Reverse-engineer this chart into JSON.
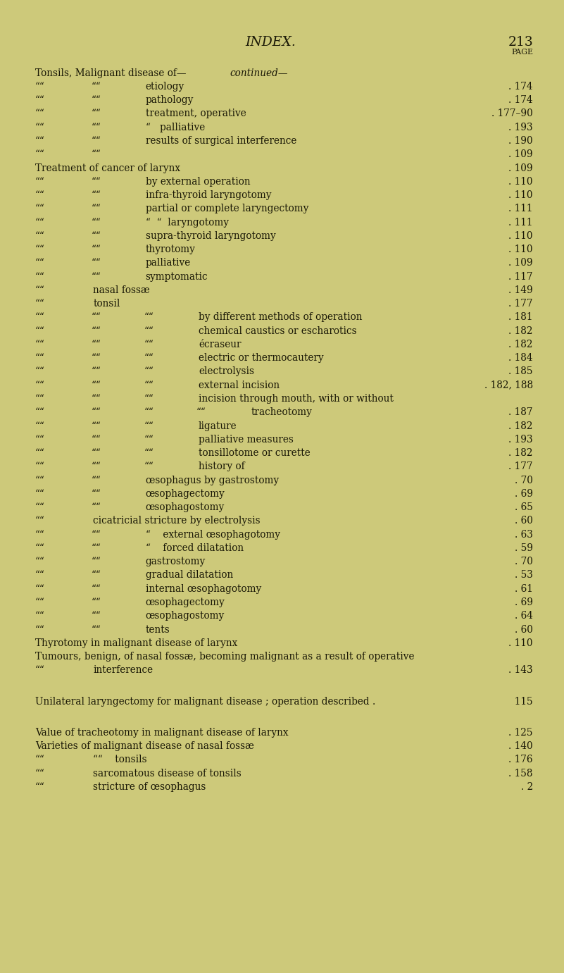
{
  "bg_color": "#cdc97a",
  "text_color": "#1a1806",
  "page_title": "INDEX.",
  "page_number": "213",
  "page_label": "PAGE",
  "title_fontsize": 13.5,
  "body_fontsize": 9.8,
  "small_fontsize": 7.8,
  "lines": [
    {
      "indent": 0,
      "text": "Tonsils, Malignant disease of—",
      "italic_suffix": "continued—",
      "page": "",
      "dots": false
    },
    {
      "indent": 2,
      "text": "etiology",
      "italic_suffix": "",
      "page": "174",
      "dots": true
    },
    {
      "indent": 2,
      "text": "pathology",
      "italic_suffix": "",
      "page": "174",
      "dots": true
    },
    {
      "indent": 2,
      "text": "treatment, operative",
      "italic_suffix": "",
      "page": "177–90",
      "dots": true
    },
    {
      "indent": 2,
      "text": "“   palliative",
      "italic_suffix": "",
      "page": "193",
      "dots": true
    },
    {
      "indent": 2,
      "text": "results of surgical interference",
      "italic_suffix": "",
      "page": "190",
      "dots": true
    },
    {
      "indent": 2,
      "text": "",
      "italic_suffix": "",
      "page": "109",
      "dots": true
    },
    {
      "indent": 0,
      "text": "Treatment of cancer of larynx",
      "italic_suffix": "",
      "page": "109",
      "dots": true
    },
    {
      "indent": 2,
      "text": "by external operation",
      "italic_suffix": "",
      "page": "110",
      "dots": true
    },
    {
      "indent": 2,
      "text": "infra-thyroid laryngotomy",
      "italic_suffix": "",
      "page": "110",
      "dots": true
    },
    {
      "indent": 2,
      "text": "partial or complete laryngectomy",
      "italic_suffix": "",
      "page": "111",
      "dots": true
    },
    {
      "indent": 2,
      "text": "“  “  laryngotomy",
      "italic_suffix": "",
      "page": "111",
      "dots": true
    },
    {
      "indent": 2,
      "text": "supra-thyroid laryngotomy",
      "italic_suffix": "",
      "page": "110",
      "dots": true
    },
    {
      "indent": 2,
      "text": "thyrotomy",
      "italic_suffix": "",
      "page": "110",
      "dots": true
    },
    {
      "indent": 2,
      "text": "palliative",
      "italic_suffix": "",
      "page": "109",
      "dots": true
    },
    {
      "indent": 2,
      "text": "symptomatic",
      "italic_suffix": "",
      "page": "117",
      "dots": true
    },
    {
      "indent": 1,
      "text": "nasal fossæ",
      "italic_suffix": "",
      "page": "149",
      "dots": true
    },
    {
      "indent": 1,
      "text": "tonsil",
      "italic_suffix": "",
      "page": "177",
      "dots": true
    },
    {
      "indent": 3,
      "text": "by different methods of operation",
      "italic_suffix": "",
      "page": "181",
      "dots": true
    },
    {
      "indent": 3,
      "text": "chemical caustics or escharotics",
      "italic_suffix": "",
      "page": "182",
      "dots": true
    },
    {
      "indent": 3,
      "text": "écraseur",
      "italic_suffix": "",
      "page": "182",
      "dots": true
    },
    {
      "indent": 3,
      "text": "electric or thermocautery",
      "italic_suffix": "",
      "page": "184",
      "dots": true
    },
    {
      "indent": 3,
      "text": "electrolysis",
      "italic_suffix": "",
      "page": "185",
      "dots": true
    },
    {
      "indent": 3,
      "text": "external incision",
      "italic_suffix": "",
      "page": "182, 188",
      "dots": true
    },
    {
      "indent": 3,
      "text": "incision through mouth, with or without",
      "italic_suffix": "",
      "page": "",
      "dots": false
    },
    {
      "indent": 4,
      "text": "tracheotomy",
      "italic_suffix": "",
      "page": "187",
      "dots": true
    },
    {
      "indent": 3,
      "text": "ligature",
      "italic_suffix": "",
      "page": "182",
      "dots": true
    },
    {
      "indent": 3,
      "text": "palliative measures",
      "italic_suffix": "",
      "page": "193",
      "dots": true
    },
    {
      "indent": 3,
      "text": "tonsillotome or curette",
      "italic_suffix": "",
      "page": "182",
      "dots": true
    },
    {
      "indent": 3,
      "text": "history of",
      "italic_suffix": "",
      "page": "177",
      "dots": true
    },
    {
      "indent": 2,
      "text": "œsophagus by gastrostomy",
      "italic_suffix": "",
      "page": "70",
      "dots": true
    },
    {
      "indent": 2,
      "text": "œsophagectomy",
      "italic_suffix": "",
      "page": "69",
      "dots": true
    },
    {
      "indent": 2,
      "text": "œsophagostomy",
      "italic_suffix": "",
      "page": "65",
      "dots": true
    },
    {
      "indent": 1,
      "text": "cicatricial stricture by electrolysis",
      "italic_suffix": "",
      "page": "60",
      "dots": true
    },
    {
      "indent": 2,
      "text": "“    external œsophagotomy",
      "italic_suffix": "",
      "page": "63",
      "dots": true
    },
    {
      "indent": 2,
      "text": "“    forced dilatation",
      "italic_suffix": "",
      "page": "59",
      "dots": true
    },
    {
      "indent": 2,
      "text": "gastrostomy",
      "italic_suffix": "",
      "page": "70",
      "dots": true
    },
    {
      "indent": 2,
      "text": "gradual dilatation",
      "italic_suffix": "",
      "page": "53",
      "dots": true
    },
    {
      "indent": 2,
      "text": "internal œsophagotomy",
      "italic_suffix": "",
      "page": "61",
      "dots": true
    },
    {
      "indent": 2,
      "text": "œsophagectomy",
      "italic_suffix": "",
      "page": "69",
      "dots": true
    },
    {
      "indent": 2,
      "text": "œsophagostomy",
      "italic_suffix": "",
      "page": "64",
      "dots": true
    },
    {
      "indent": 2,
      "text": "tents",
      "italic_suffix": "",
      "page": "60",
      "dots": true
    },
    {
      "indent": 0,
      "text": "Thyrotomy in malignant disease of larynx",
      "italic_suffix": "",
      "page": "110",
      "dots": true
    },
    {
      "indent": 0,
      "text": "Tumours, benign, of nasal fossæ, becoming malignant as a result of operative",
      "italic_suffix": "",
      "page": "",
      "dots": false
    },
    {
      "indent": 1,
      "text": "interference",
      "italic_suffix": "",
      "page": "143",
      "dots": true
    },
    {
      "indent": -1,
      "text": "",
      "italic_suffix": "",
      "page": "",
      "dots": false
    },
    {
      "indent": 0,
      "text": "Unilateral laryngectomy for malignant disease ; operation described .",
      "italic_suffix": "",
      "page": "115",
      "dots": false
    },
    {
      "indent": -1,
      "text": "",
      "italic_suffix": "",
      "page": "",
      "dots": false
    },
    {
      "indent": 0,
      "text": "Value of tracheotomy in malignant disease of larynx",
      "italic_suffix": "",
      "page": "125",
      "dots": true
    },
    {
      "indent": 0,
      "text": "Varieties of malignant disease of nasal fossæ",
      "italic_suffix": "",
      "page": "140",
      "dots": true
    },
    {
      "indent": 1,
      "text": "““    tonsils",
      "italic_suffix": "",
      "page": "176",
      "dots": true
    },
    {
      "indent": 1,
      "text": "sarcomatous disease of tonsils",
      "italic_suffix": "",
      "page": "158",
      "dots": true
    },
    {
      "indent": 1,
      "text": "stricture of œsophagus",
      "italic_suffix": "",
      "page": "2",
      "dots": true
    }
  ]
}
